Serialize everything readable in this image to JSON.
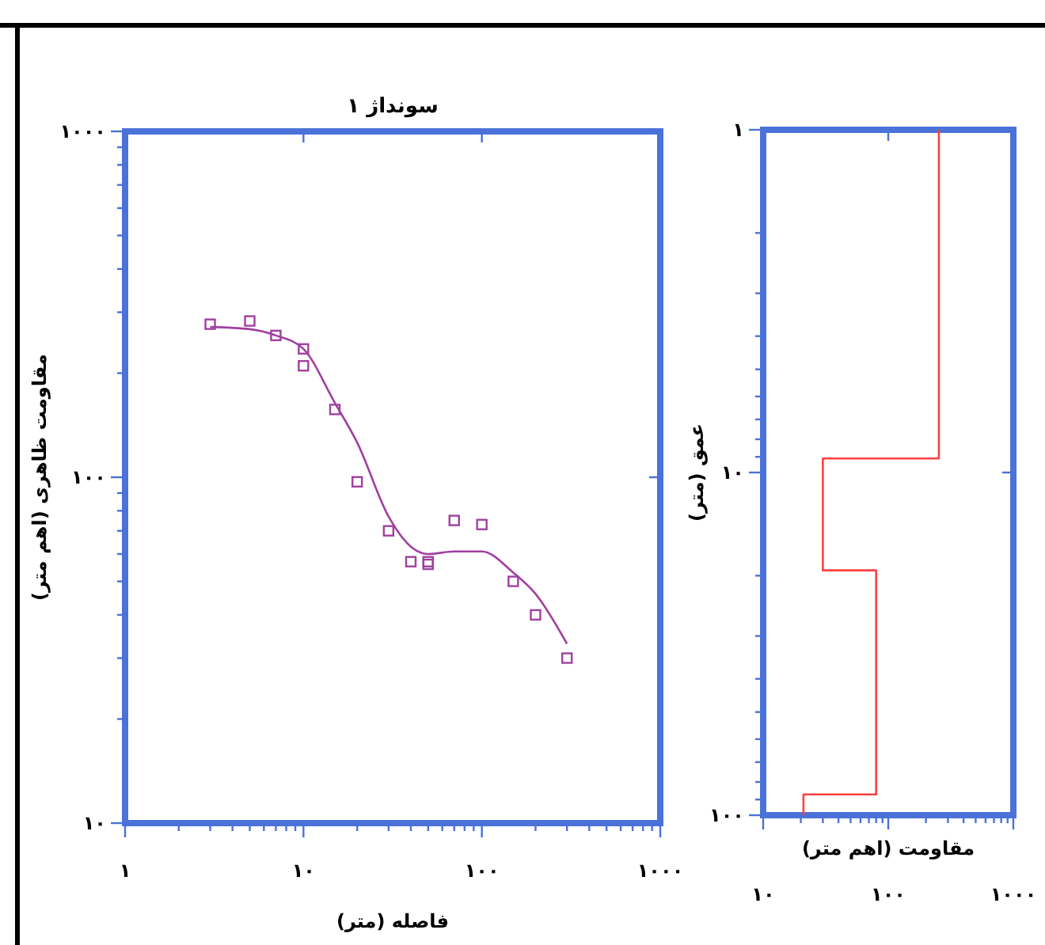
{
  "chart_data": [
    {
      "type": "scatter",
      "title": "سونداژ ۱",
      "xlabel": "فاصله (متر)",
      "ylabel": "مقاومت ظاهری (اهم متر)",
      "log": "xy",
      "marker": "square",
      "grid": false,
      "xlim": [
        1,
        1000
      ],
      "ylim": [
        10,
        1000
      ],
      "xticks": [
        {
          "value": 1,
          "label": "۱"
        },
        {
          "value": 2,
          "label": null
        },
        {
          "value": 3,
          "label": null
        },
        {
          "value": 4,
          "label": null
        },
        {
          "value": 5,
          "label": null
        },
        {
          "value": 6,
          "label": null
        },
        {
          "value": 7,
          "label": null
        },
        {
          "value": 8,
          "label": null
        },
        {
          "value": 9,
          "label": null
        },
        {
          "value": 10,
          "label": "۱۰"
        },
        {
          "value": 20,
          "label": null
        },
        {
          "value": 30,
          "label": null
        },
        {
          "value": 40,
          "label": null
        },
        {
          "value": 50,
          "label": null
        },
        {
          "value": 60,
          "label": null
        },
        {
          "value": 70,
          "label": null
        },
        {
          "value": 80,
          "label": null
        },
        {
          "value": 90,
          "label": null
        },
        {
          "value": 100,
          "label": "۱۰۰"
        },
        {
          "value": 200,
          "label": null
        },
        {
          "value": 300,
          "label": null
        },
        {
          "value": 400,
          "label": null
        },
        {
          "value": 500,
          "label": null
        },
        {
          "value": 600,
          "label": null
        },
        {
          "value": 700,
          "label": null
        },
        {
          "value": 800,
          "label": null
        },
        {
          "value": 900,
          "label": null
        },
        {
          "value": 1000,
          "label": "۱۰۰۰"
        }
      ],
      "yticks": [
        {
          "value": 10,
          "label": "۱۰"
        },
        {
          "value": 20,
          "label": null
        },
        {
          "value": 30,
          "label": null
        },
        {
          "value": 40,
          "label": null
        },
        {
          "value": 50,
          "label": null
        },
        {
          "value": 60,
          "label": null
        },
        {
          "value": 70,
          "label": null
        },
        {
          "value": 80,
          "label": null
        },
        {
          "value": 90,
          "label": null
        },
        {
          "value": 100,
          "label": "۱۰۰"
        },
        {
          "value": 200,
          "label": null
        },
        {
          "value": 300,
          "label": null
        },
        {
          "value": 400,
          "label": null
        },
        {
          "value": 500,
          "label": null
        },
        {
          "value": 600,
          "label": null
        },
        {
          "value": 700,
          "label": null
        },
        {
          "value": 800,
          "label": null
        },
        {
          "value": 900,
          "label": null
        },
        {
          "value": 1000,
          "label": "۱۰۰۰"
        }
      ],
      "series": [
        {
          "color": "#a040a0",
          "x": [
            3,
            5,
            7,
            10,
            10,
            15,
            20,
            30,
            40,
            50,
            50,
            70,
            100,
            150,
            200,
            300
          ],
          "values": [
            277,
            283,
            257,
            235,
            210,
            157,
            97,
            70,
            57,
            57,
            56,
            75,
            73,
            50,
            40,
            30
          ]
        },
        {
          "type": "line",
          "color": "#a040a0",
          "marker": "none",
          "line_style": "solid",
          "x": [
            3,
            5,
            7,
            10,
            15,
            20,
            30,
            40,
            50,
            70,
            100,
            150,
            200,
            300
          ],
          "values": [
            272,
            268,
            257,
            235,
            164,
            126,
            77,
            63,
            60,
            61,
            61,
            53,
            46,
            33
          ]
        }
      ]
    },
    {
      "type": "step",
      "xlabel": "مقاومت (اهم متر)",
      "ylabel": "عمق (متر)",
      "log": "xy",
      "grid": false,
      "xlim": [
        10,
        1000
      ],
      "ylim": [
        100,
        1
      ],
      "xticks": [
        {
          "value": 10,
          "label": "۱۰"
        },
        {
          "value": 20,
          "label": null
        },
        {
          "value": 30,
          "label": null
        },
        {
          "value": 40,
          "label": null
        },
        {
          "value": 50,
          "label": null
        },
        {
          "value": 60,
          "label": null
        },
        {
          "value": 70,
          "label": null
        },
        {
          "value": 80,
          "label": null
        },
        {
          "value": 90,
          "label": null
        },
        {
          "value": 100,
          "label": "۱۰۰"
        },
        {
          "value": 200,
          "label": null
        },
        {
          "value": 300,
          "label": null
        },
        {
          "value": 400,
          "label": null
        },
        {
          "value": 500,
          "label": null
        },
        {
          "value": 600,
          "label": null
        },
        {
          "value": 700,
          "label": null
        },
        {
          "value": 800,
          "label": null
        },
        {
          "value": 900,
          "label": null
        },
        {
          "value": 1000,
          "label": "۱۰۰۰"
        }
      ],
      "yticks": [
        {
          "value": 1,
          "label": "۱"
        },
        {
          "value": 2,
          "label": null
        },
        {
          "value": 3,
          "label": null
        },
        {
          "value": 4,
          "label": null
        },
        {
          "value": 5,
          "label": null
        },
        {
          "value": 6,
          "label": null
        },
        {
          "value": 7,
          "label": null
        },
        {
          "value": 8,
          "label": null
        },
        {
          "value": 9,
          "label": null
        },
        {
          "value": 10,
          "label": "۱۰"
        },
        {
          "value": 20,
          "label": null
        },
        {
          "value": 30,
          "label": null
        },
        {
          "value": 40,
          "label": null
        },
        {
          "value": 50,
          "label": null
        },
        {
          "value": 60,
          "label": null
        },
        {
          "value": 70,
          "label": null
        },
        {
          "value": 80,
          "label": null
        },
        {
          "value": 90,
          "label": null
        },
        {
          "value": 100,
          "label": "۱۰۰"
        }
      ],
      "series": [
        {
          "color": "#ff4040",
          "x": [
            254,
            30,
            80,
            21,
            21
          ],
          "values": [
            1,
            9.1,
            19.3,
            87,
            100
          ]
        }
      ]
    }
  ]
}
